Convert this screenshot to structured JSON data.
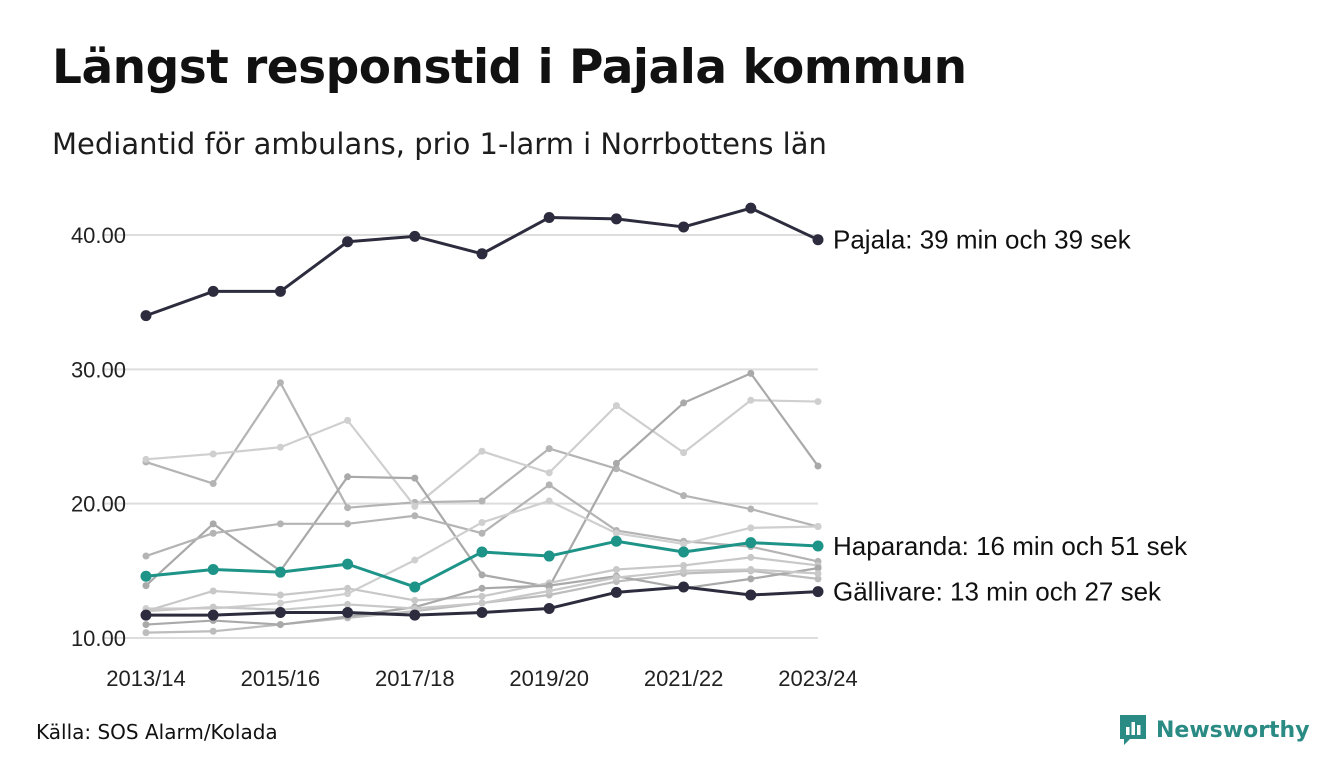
{
  "header": {
    "title": "Längst responstid i Pajala kommun",
    "subtitle": "Mediantid för ambulans, prio 1-larm i Norrbottens län"
  },
  "footer": {
    "source": "Källa: SOS Alarm/Kolada",
    "logo_text": "Newsworthy"
  },
  "colors": {
    "highlight_dark": "#2d2c3e",
    "highlight_teal": "#1e9488",
    "background_series": [
      "#b4b4b4",
      "#c8c8c8",
      "#a9a9a9",
      "#cfcfcf",
      "#bdbdbd"
    ],
    "gridline": "#dddddd"
  },
  "chart_data": {
    "type": "line",
    "x": [
      "2013/14",
      "2014/15",
      "2015/16",
      "2016/17",
      "2017/18",
      "2018/19",
      "2019/20",
      "2020/21",
      "2021/22",
      "2022/23",
      "2023/24"
    ],
    "x_tick_labels": [
      "2013/14",
      "2015/16",
      "2017/18",
      "2019/20",
      "2021/22",
      "2023/24"
    ],
    "y_tick_labels": [
      "10.00",
      "20.00",
      "30.00",
      "40.00"
    ],
    "ylim": [
      10,
      42
    ],
    "grid": "horizontal",
    "series": [
      {
        "values": [
          23.1,
          21.5,
          29.0,
          19.7,
          20.1,
          20.2,
          24.1,
          22.6,
          20.6,
          19.6,
          18.3
        ],
        "color": "#b4b4b4",
        "role": "background"
      },
      {
        "values": [
          23.3,
          23.7,
          24.2,
          26.2,
          19.8,
          23.9,
          22.3,
          27.3,
          23.8,
          27.7,
          27.6
        ],
        "color": "#cfcfcf",
        "role": "background"
      },
      {
        "values": [
          13.9,
          18.5,
          15.0,
          22.0,
          21.9,
          14.7,
          13.8,
          23.0,
          27.5,
          29.7,
          22.8
        ],
        "color": "#a9a9a9",
        "role": "background"
      },
      {
        "values": [
          16.1,
          17.8,
          18.5,
          18.5,
          19.1,
          17.8,
          21.4,
          18.0,
          17.2,
          16.8,
          15.7
        ],
        "color": "#b4b4b4",
        "role": "background"
      },
      {
        "values": [
          12.2,
          12.2,
          12.6,
          13.3,
          15.8,
          18.6,
          20.2,
          17.8,
          17.0,
          18.2,
          18.3
        ],
        "color": "#cfcfcf",
        "role": "background"
      },
      {
        "values": [
          12.0,
          13.5,
          13.2,
          13.7,
          12.8,
          13.1,
          14.1,
          15.1,
          15.4,
          16.0,
          15.4
        ],
        "color": "#c8c8c8",
        "role": "background"
      },
      {
        "values": [
          10.4,
          10.5,
          11.0,
          11.5,
          12.0,
          12.6,
          13.2,
          14.2,
          14.8,
          15.0,
          14.4
        ],
        "color": "#bdbdbd",
        "role": "background"
      },
      {
        "values": [
          11.0,
          11.3,
          11.0,
          11.6,
          12.3,
          13.7,
          13.9,
          14.6,
          13.7,
          14.4,
          15.2
        ],
        "color": "#a9a9a9",
        "role": "background"
      },
      {
        "values": [
          12.0,
          12.3,
          12.1,
          12.5,
          12.2,
          12.6,
          13.5,
          14.5,
          15.0,
          15.1,
          14.8
        ],
        "color": "#c8c8c8",
        "role": "background"
      },
      {
        "name": "Haparanda",
        "label": "Haparanda: 16 min och 51 sek",
        "values": [
          14.6,
          15.1,
          14.9,
          15.5,
          13.8,
          16.4,
          16.1,
          17.2,
          16.4,
          17.1,
          16.85
        ],
        "color": "#1e9488",
        "role": "highlight"
      },
      {
        "name": "Gällivare",
        "label": "Gällivare: 13 min och 27 sek",
        "values": [
          11.7,
          11.7,
          11.9,
          11.9,
          11.7,
          11.9,
          12.2,
          13.4,
          13.8,
          13.2,
          13.45
        ],
        "color": "#2d2c3e",
        "role": "highlight"
      },
      {
        "name": "Pajala",
        "label": "Pajala: 39 min och 39 sek",
        "values": [
          34.0,
          35.8,
          35.8,
          39.5,
          39.9,
          38.6,
          41.3,
          41.2,
          40.6,
          42.0,
          39.65
        ],
        "color": "#2d2c3e",
        "role": "highlight"
      }
    ]
  }
}
